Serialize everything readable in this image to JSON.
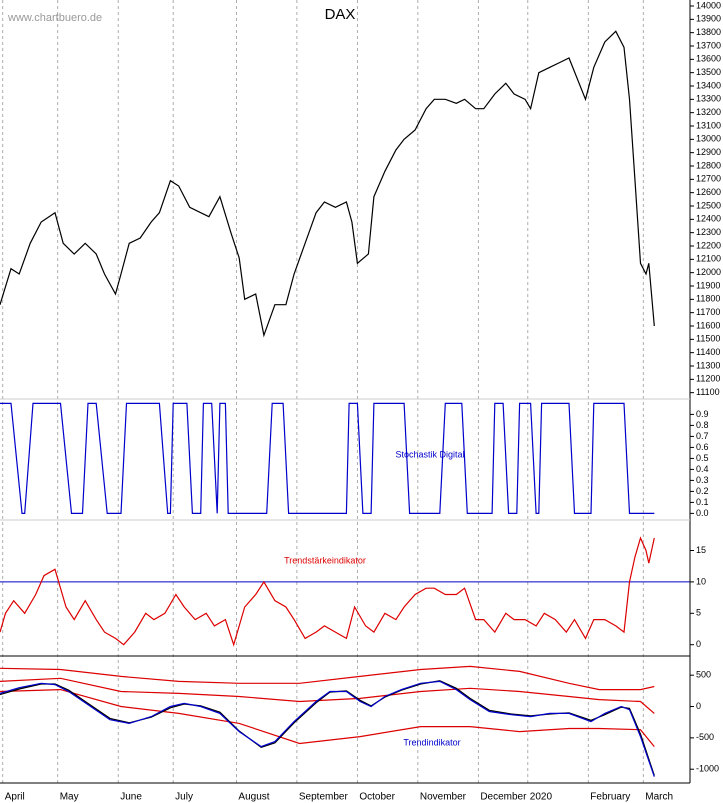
{
  "chart_data": [
    {
      "type": "line",
      "title": "DAX",
      "source": "www.chartbuero.de",
      "title_color": "#000000",
      "xlim": [
        0,
        251
      ],
      "ylim": [
        11060,
        14030
      ],
      "yticks": [
        11100,
        11200,
        11300,
        11400,
        11500,
        11600,
        11700,
        11800,
        11900,
        12000,
        12100,
        12200,
        12300,
        12400,
        12500,
        12600,
        12700,
        12800,
        12900,
        13000,
        13100,
        13200,
        13300,
        13400,
        13500,
        13600,
        13700,
        13800,
        13900,
        14000
      ],
      "series": [
        {
          "color": "#000000",
          "x": [
            0,
            4,
            7,
            11,
            15,
            20,
            23,
            27,
            31,
            35,
            38,
            42,
            44,
            47,
            51,
            55,
            58,
            62,
            65,
            69,
            73,
            76,
            80,
            84,
            87,
            89,
            93,
            96,
            100,
            104,
            107,
            111,
            115,
            118,
            122,
            126,
            128,
            130,
            134,
            136,
            140,
            144,
            147,
            151,
            155,
            158,
            162,
            166,
            169,
            173,
            176,
            180,
            184,
            187,
            191,
            193,
            196,
            200,
            204,
            207,
            213,
            216,
            220,
            224,
            227,
            229,
            231,
            233,
            235,
            236,
            238
          ],
          "values": [
            11760,
            12030,
            11990,
            12220,
            12380,
            12450,
            12220,
            12140,
            12220,
            12140,
            11990,
            11840,
            11990,
            12220,
            12260,
            12380,
            12450,
            12690,
            12650,
            12490,
            12450,
            12420,
            12570,
            12300,
            12110,
            11800,
            11840,
            11530,
            11760,
            11760,
            11990,
            12220,
            12450,
            12530,
            12490,
            12530,
            12380,
            12070,
            12140,
            12570,
            12760,
            12920,
            13000,
            13070,
            13230,
            13300,
            13300,
            13270,
            13300,
            13230,
            13230,
            13340,
            13420,
            13340,
            13300,
            13230,
            13500,
            13540,
            13580,
            13610,
            13300,
            13540,
            13730,
            13810,
            13690,
            13300,
            12690,
            12070,
            11990,
            12070,
            11600
          ]
        }
      ]
    },
    {
      "type": "line",
      "title": "Stochastik Digital",
      "title_color": "#0000cc",
      "xlim": [
        0,
        251
      ],
      "ylim": [
        -0.06,
        1.04
      ],
      "yticks": [
        {
          "value": 0,
          "label": "0.0"
        },
        0.1,
        0.2,
        0.3,
        0.4,
        0.5,
        0.6,
        0.7,
        0.8,
        0.9
      ],
      "series": [
        {
          "color": "#0000cc",
          "x": [
            0,
            4,
            8,
            9,
            12,
            22,
            26,
            30,
            32,
            35,
            39,
            44,
            46,
            58,
            61,
            62,
            63,
            68,
            70,
            73,
            74,
            77,
            79,
            80,
            82,
            83,
            97,
            99,
            103,
            105,
            126,
            127,
            130,
            132,
            135,
            136,
            147,
            149,
            160,
            162,
            168,
            170,
            179,
            180,
            183,
            185,
            188,
            189,
            193,
            195,
            196,
            197,
            207,
            209,
            215,
            216,
            227,
            229,
            238
          ],
          "values": [
            1,
            1,
            0,
            0,
            1,
            1,
            0,
            0,
            1,
            1,
            0,
            0,
            1,
            1,
            0,
            0,
            1,
            1,
            0,
            0,
            1,
            1,
            0,
            1,
            1,
            0,
            0,
            1,
            1,
            0,
            0,
            1,
            1,
            0,
            0,
            1,
            1,
            0,
            0,
            1,
            1,
            0,
            0,
            1,
            1,
            0,
            0,
            1,
            1,
            0,
            0,
            1,
            1,
            0,
            0,
            1,
            1,
            0,
            0
          ]
        }
      ]
    },
    {
      "type": "line",
      "title": "Trendstärkeindikator",
      "title_color": "#dd0000",
      "xlim": [
        0,
        251
      ],
      "ylim": [
        -1.8,
        19.7
      ],
      "yticks": [
        0,
        5,
        10,
        15
      ],
      "ref_line": 10,
      "ref_color": "#0000cc",
      "series": [
        {
          "color": "#dd0000",
          "x": [
            0,
            2,
            5,
            9,
            13,
            16,
            20,
            24,
            27,
            31,
            35,
            38,
            42,
            45,
            49,
            53,
            56,
            60,
            64,
            67,
            71,
            75,
            78,
            82,
            85,
            89,
            93,
            96,
            100,
            104,
            107,
            111,
            115,
            118,
            122,
            126,
            129,
            133,
            136,
            140,
            144,
            147,
            151,
            155,
            158,
            162,
            166,
            169,
            173,
            176,
            180,
            184,
            187,
            191,
            195,
            198,
            202,
            206,
            209,
            213,
            216,
            220,
            224,
            227,
            229,
            231,
            233,
            235,
            236,
            238
          ],
          "values": [
            2,
            5,
            7,
            5,
            8,
            11,
            12,
            6,
            4,
            7,
            4,
            2,
            1,
            0,
            2,
            5,
            4,
            5,
            8,
            6,
            4,
            5,
            3,
            4,
            0,
            6,
            8,
            10,
            7,
            6,
            4,
            1,
            2,
            3,
            2,
            1,
            6,
            3,
            2,
            5,
            4,
            6,
            8,
            9,
            9,
            8,
            8,
            9,
            4,
            4,
            2,
            5,
            4,
            4,
            3,
            5,
            4,
            2,
            4,
            1,
            4,
            4,
            3,
            2,
            10,
            14,
            17,
            15,
            13,
            17
          ]
        }
      ]
    },
    {
      "type": "line",
      "title": "Trendindikator",
      "title_color": "#0000cc",
      "xlim": [
        0,
        251
      ],
      "ylim": [
        -1220,
        790
      ],
      "yticks": [
        500,
        0,
        -500,
        -1000
      ],
      "xticks": [
        {
          "value": 1,
          "label": "April"
        },
        {
          "value": 21,
          "label": "May"
        },
        {
          "value": 43,
          "label": "June"
        },
        {
          "value": 63,
          "label": "July"
        },
        {
          "value": 86,
          "label": "August"
        },
        {
          "value": 108,
          "label": "September"
        },
        {
          "value": 130,
          "label": "October"
        },
        {
          "value": 152,
          "label": "November"
        },
        {
          "value": 174,
          "label": "December"
        },
        {
          "value": 192,
          "label": "2020"
        },
        {
          "value": 214,
          "label": "February"
        },
        {
          "value": 234,
          "label": "March"
        }
      ],
      "series": [
        {
          "color": "#dd0000",
          "x": [
            0,
            22,
            44,
            65,
            87,
            109,
            131,
            153,
            171,
            189,
            207,
            218,
            233,
            238
          ],
          "values": [
            610,
            590,
            480,
            400,
            370,
            370,
            480,
            590,
            640,
            560,
            370,
            270,
            270,
            320
          ]
        },
        {
          "color": "#dd0000",
          "x": [
            0,
            22,
            44,
            65,
            87,
            109,
            131,
            153,
            171,
            189,
            207,
            218,
            233,
            238
          ],
          "values": [
            400,
            450,
            240,
            210,
            160,
            80,
            130,
            240,
            290,
            240,
            160,
            110,
            80,
            -110
          ]
        },
        {
          "color": "#dd0000",
          "x": [
            0,
            22,
            44,
            65,
            87,
            109,
            131,
            153,
            171,
            189,
            207,
            218,
            233,
            238
          ],
          "values": [
            240,
            270,
            0,
            -110,
            -270,
            -590,
            -480,
            -320,
            -320,
            -400,
            -350,
            -350,
            -370,
            -640
          ]
        },
        {
          "color": "#000000",
          "x": [
            0,
            7,
            15,
            20,
            25,
            33,
            40,
            47,
            55,
            62,
            67,
            73,
            80,
            87,
            95,
            100,
            107,
            115,
            120,
            126,
            131,
            135,
            140,
            146,
            153,
            160,
            166,
            171,
            178,
            186,
            193,
            200,
            207,
            215,
            220,
            226,
            229,
            233,
            238
          ],
          "values": [
            190,
            280,
            360,
            360,
            260,
            20,
            -190,
            -260,
            -170,
            -20,
            40,
            10,
            -90,
            -390,
            -650,
            -580,
            -260,
            60,
            230,
            250,
            100,
            10,
            150,
            260,
            360,
            410,
            290,
            130,
            -60,
            -120,
            -150,
            -120,
            -100,
            -220,
            -130,
            -10,
            -30,
            -440,
            -1100
          ]
        },
        {
          "color": "#0000cc",
          "x": [
            0,
            7,
            15,
            20,
            25,
            33,
            40,
            47,
            55,
            62,
            67,
            73,
            80,
            87,
            95,
            100,
            107,
            115,
            120,
            126,
            131,
            135,
            140,
            146,
            153,
            160,
            166,
            171,
            178,
            186,
            193,
            200,
            207,
            215,
            220,
            226,
            229,
            233,
            238
          ],
          "values": [
            210,
            300,
            370,
            350,
            240,
            0,
            -210,
            -270,
            -160,
            0,
            50,
            0,
            -110,
            -400,
            -640,
            -560,
            -240,
            80,
            240,
            240,
            80,
            0,
            160,
            270,
            370,
            400,
            270,
            110,
            -80,
            -130,
            -160,
            -110,
            -110,
            -240,
            -110,
            0,
            -50,
            -480,
            -1120
          ]
        }
      ]
    }
  ]
}
